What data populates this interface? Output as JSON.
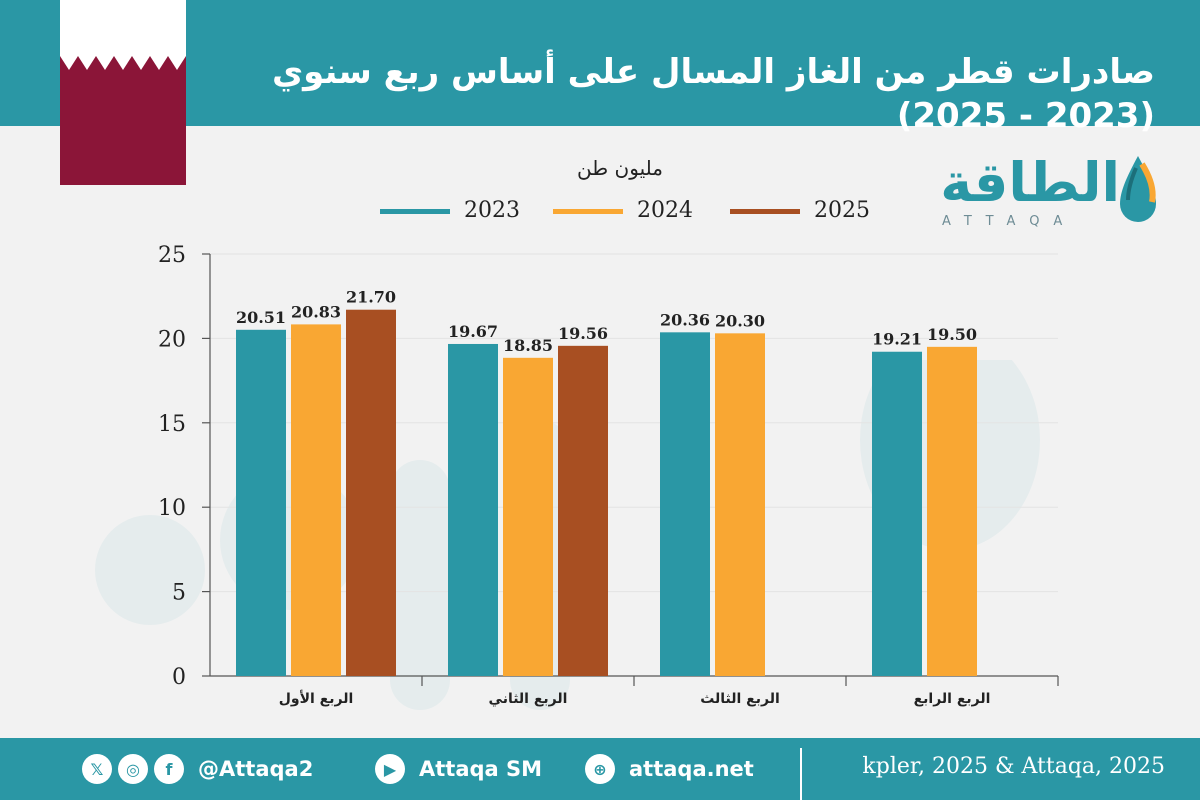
{
  "header": {
    "title": "صادرات قطر من الغاز المسال على أساس ربع سنوي (2023 - 2025)"
  },
  "brand": {
    "logo_arabic": "الطاقة",
    "logo_latin": "ATTAQA"
  },
  "footer": {
    "social_handle": "@Attaqa2",
    "youtube_label": "Attaqa SM",
    "website": "attaqa.net",
    "source": "kpler, 2025 & Attaqa, 2025"
  },
  "colors": {
    "header_bg": "#2a97a5",
    "flag_maroon": "#8b1538",
    "series_2023": "#2a97a5",
    "series_2024": "#f9a733",
    "series_2025": "#a84f22"
  },
  "icons": [
    "x-icon",
    "instagram-icon",
    "facebook-icon",
    "youtube-icon",
    "globe-icon",
    "water-drop-logo-icon",
    "qatar-flag-icon"
  ],
  "chart_data": {
    "type": "bar",
    "title": "",
    "unit_label": "مليون طن",
    "categories": [
      "الربع الأول",
      "الربع الثاني",
      "الربع الثالث",
      "الربع الرابع"
    ],
    "series": [
      {
        "name": "2023",
        "color": "#2a97a5",
        "values": [
          20.51,
          19.67,
          20.36,
          19.21
        ]
      },
      {
        "name": "2024",
        "color": "#f9a733",
        "values": [
          20.83,
          18.85,
          20.3,
          19.5
        ]
      },
      {
        "name": "2025",
        "color": "#a84f22",
        "values": [
          21.7,
          19.56,
          null,
          null
        ]
      }
    ],
    "ylim": [
      0,
      25
    ],
    "yticks": [
      0,
      5,
      10,
      15,
      20,
      25
    ],
    "data_labels": [
      [
        "20.51",
        "19.67",
        "20.36",
        "19.21"
      ],
      [
        "20.83",
        "18.85",
        "20.30",
        "19.50"
      ],
      [
        "21.70",
        "19.56",
        "",
        ""
      ]
    ],
    "legend_position": "top",
    "grid": true
  }
}
